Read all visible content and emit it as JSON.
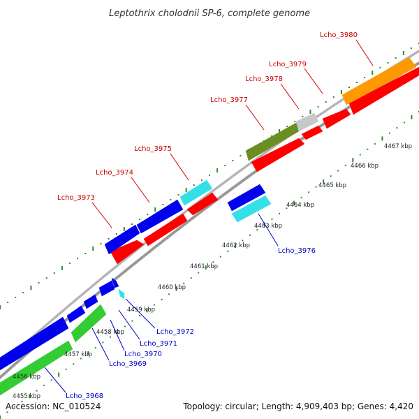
{
  "title": "Leptothrix cholodnii SP-6, complete genome",
  "accession": "Accession: NC_010524",
  "summary": "Topology: circular; Length: 4,909,403 bp; Genes: 4,420",
  "colors": {
    "red": "#ff0000",
    "blue": "#0000ee",
    "cyan": "#33e0e8",
    "orange": "#ff9900",
    "olive": "#6b8e23",
    "gray": "#c8c8c8",
    "green": "#33cc33",
    "backbone": "#999999",
    "tick": "#2e8b2e",
    "label_red": "#cc0000",
    "label_blue": "#0000cc"
  },
  "ticks": [
    {
      "label": "4456 kbp"
    },
    {
      "label": "4457 kbp"
    },
    {
      "label": "4458 kbp"
    },
    {
      "label": "4459 kbp"
    },
    {
      "label": "4460 kbp"
    },
    {
      "label": "4461 kbp"
    },
    {
      "label": "4462 kbp"
    },
    {
      "label": "4463 kbp"
    },
    {
      "label": "4464 kbp"
    },
    {
      "label": "4465 kbp"
    },
    {
      "label": "4466 kbp"
    },
    {
      "label": "4467 kbp"
    },
    {
      "label": "4455 kbp"
    }
  ],
  "genes_top": [
    {
      "name": "Lcho_3973",
      "color": "label_red"
    },
    {
      "name": "Lcho_3974",
      "color": "label_red"
    },
    {
      "name": "Lcho_3975",
      "color": "label_red"
    },
    {
      "name": "Lcho_3977",
      "color": "label_red"
    },
    {
      "name": "Lcho_3978",
      "color": "label_red"
    },
    {
      "name": "Lcho_3979",
      "color": "label_red"
    },
    {
      "name": "Lcho_3980",
      "color": "label_red"
    }
  ],
  "genes_bottom": [
    {
      "name": "Lcho_3976",
      "color": "label_blue"
    },
    {
      "name": "Lcho_3972",
      "color": "label_blue"
    },
    {
      "name": "Lcho_3971",
      "color": "label_blue"
    },
    {
      "name": "Lcho_3970",
      "color": "label_blue"
    },
    {
      "name": "Lcho_3969",
      "color": "label_blue"
    },
    {
      "name": "Lcho_3968",
      "color": "label_blue"
    }
  ]
}
